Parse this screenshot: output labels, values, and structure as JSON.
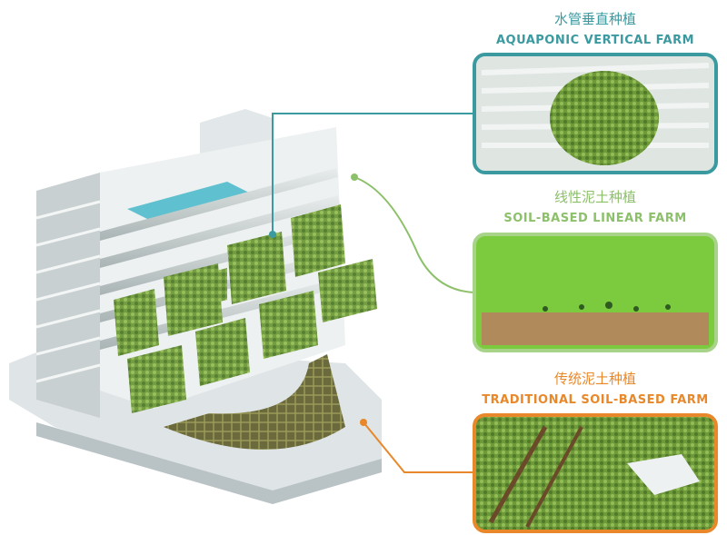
{
  "panels": [
    {
      "title_zh": "水管垂直种植",
      "title_en": "AQUAPONIC VERTICAL FARM"
    },
    {
      "title_zh": "线性泥土种植",
      "title_en": "SOIL-BASED LINEAR FARM"
    },
    {
      "title_zh": "传统泥土种植",
      "title_en": "TRADITIONAL SOIL-BASED  FARM"
    }
  ]
}
